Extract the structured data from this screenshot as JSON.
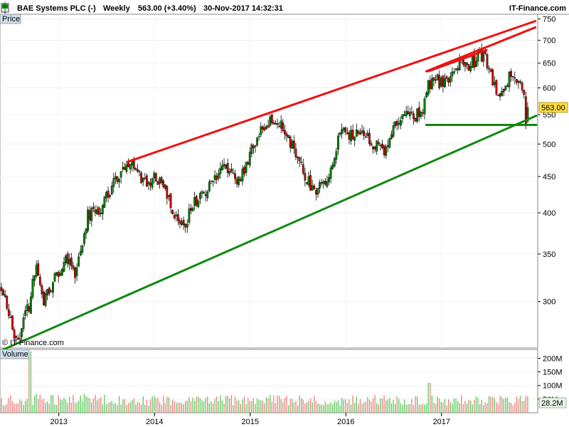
{
  "header": {
    "title": "BAE Systems PLC (-)",
    "period": "Weekly",
    "quote": "563.00 (+3.40%)",
    "datetime": "30-Nov-2017 14:32:31",
    "brand": "IT-Finance.com"
  },
  "panels": {
    "price_label": "Price",
    "volume_label": "Volume",
    "copyright": "© IT-Finance.com",
    "last_price_badge": "563.00",
    "last_volume_badge": "28.2M"
  },
  "colors": {
    "up": "#008000",
    "down": "#cc0000",
    "trend_red": "#ee1111",
    "trend_green": "#118811",
    "volume_up": "#66cc66",
    "volume_down": "#ee8888",
    "badge": "#ffdd44",
    "panel_label_bg": "#cfe0ef"
  },
  "chart_data": [
    {
      "type": "candlestick",
      "title": "BAE Systems PLC (-) Weekly",
      "scale": "log",
      "ylim": [
        258,
        760
      ],
      "y_ticks": [
        750,
        700,
        650,
        600,
        550,
        500,
        450,
        400,
        350,
        300
      ],
      "x_ticks": [
        "2013",
        "2014",
        "2015",
        "2016",
        "2017"
      ],
      "last_close": 563.0,
      "series": [
        {
          "anchors_year_close": [
            [
              2012.4,
              315
            ],
            [
              2012.5,
              280
            ],
            [
              2012.56,
              262
            ],
            [
              2012.7,
              300
            ],
            [
              2012.76,
              340
            ],
            [
              2012.84,
              298
            ],
            [
              2012.98,
              330
            ],
            [
              2013.12,
              350
            ],
            [
              2013.16,
              322
            ],
            [
              2013.3,
              395
            ],
            [
              2013.46,
              410
            ],
            [
              2013.56,
              440
            ],
            [
              2013.7,
              462
            ],
            [
              2013.78,
              470
            ],
            [
              2013.88,
              440
            ],
            [
              2014.0,
              450
            ],
            [
              2014.1,
              430
            ],
            [
              2014.24,
              392
            ],
            [
              2014.3,
              380
            ],
            [
              2014.44,
              418
            ],
            [
              2014.56,
              430
            ],
            [
              2014.72,
              462
            ],
            [
              2014.86,
              440
            ],
            [
              2014.96,
              470
            ],
            [
              2015.08,
              510
            ],
            [
              2015.18,
              535
            ],
            [
              2015.28,
              545
            ],
            [
              2015.38,
              520
            ],
            [
              2015.5,
              470
            ],
            [
              2015.62,
              440
            ],
            [
              2015.7,
              430
            ],
            [
              2015.78,
              442
            ],
            [
              2015.86,
              470
            ],
            [
              2015.96,
              525
            ],
            [
              2016.06,
              515
            ],
            [
              2016.16,
              520
            ],
            [
              2016.26,
              505
            ],
            [
              2016.4,
              490
            ],
            [
              2016.48,
              520
            ],
            [
              2016.56,
              548
            ],
            [
              2016.7,
              542
            ],
            [
              2016.8,
              560
            ],
            [
              2016.84,
              598
            ],
            [
              2016.9,
              615
            ],
            [
              2017.0,
              612
            ],
            [
              2017.1,
              615
            ],
            [
              2017.2,
              650
            ],
            [
              2017.3,
              645
            ],
            [
              2017.4,
              670
            ],
            [
              2017.46,
              665
            ],
            [
              2017.56,
              600
            ],
            [
              2017.66,
              590
            ],
            [
              2017.72,
              625
            ],
            [
              2017.76,
              630
            ],
            [
              2017.82,
              605
            ],
            [
              2017.86,
              590
            ],
            [
              2017.88,
              540
            ],
            [
              2017.9,
              563
            ]
          ],
          "weekly_volume_typical_M": 60,
          "volume_spikes_M": [
            [
              2012.7,
              225
            ],
            [
              2012.76,
              70
            ],
            [
              2013.26,
              70
            ],
            [
              2016.87,
              110
            ]
          ]
        }
      ]
    },
    {
      "type": "trendlines",
      "lines": [
        {
          "name": "upper-channel",
          "color": "red",
          "from": [
            2013.72,
            472
          ],
          "to": [
            2017.98,
            745
          ]
        },
        {
          "name": "upper-channel-2",
          "color": "red",
          "from": [
            2016.84,
            633
          ],
          "to": [
            2017.98,
            730
          ]
        },
        {
          "name": "upper-recent",
          "color": "red",
          "from": [
            2016.86,
            633
          ],
          "to": [
            2017.47,
            678
          ]
        },
        {
          "name": "lower-channel",
          "color": "green",
          "from": [
            2012.4,
            256
          ],
          "to": [
            2017.99,
            548
          ]
        },
        {
          "name": "support",
          "color": "green",
          "from": [
            2016.84,
            532
          ],
          "to": [
            2017.99,
            532
          ]
        }
      ]
    }
  ]
}
